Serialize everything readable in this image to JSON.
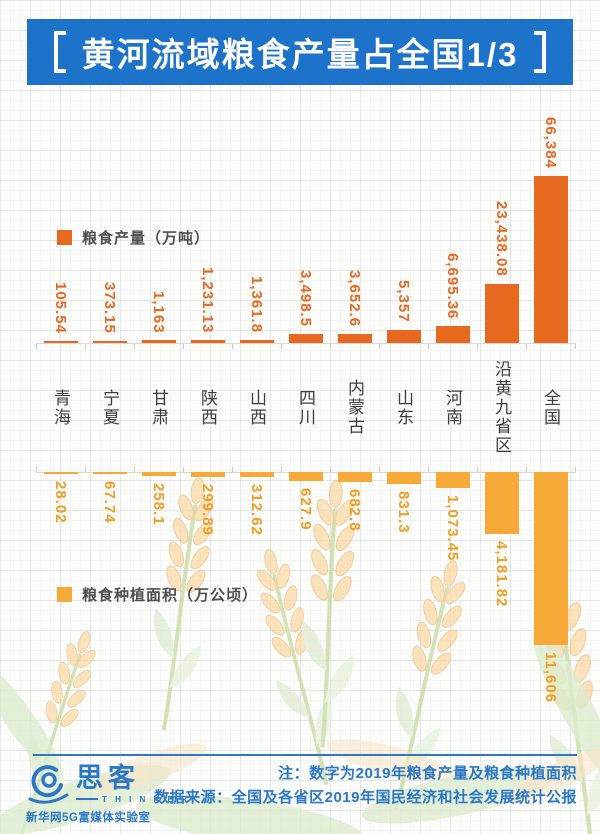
{
  "title": {
    "text": "黄河流域粮食产量占全国1/3"
  },
  "charts": {
    "categories": [
      "青海",
      "宁夏",
      "甘肃",
      "陕西",
      "山西",
      "四川",
      "内蒙古",
      "山东",
      "河南",
      "沿黄九省区",
      "全国"
    ],
    "production": {
      "legend": "粮食产量（万吨）",
      "labels": [
        "105.54",
        "373.15",
        "1,163",
        "1,231.13",
        "1,361.8",
        "3,498.5",
        "3,652.6",
        "5,357",
        "6,695.36",
        "23,438.08",
        "66,384"
      ],
      "values": [
        105.54,
        373.15,
        1163,
        1231.13,
        1361.8,
        3498.5,
        3652.6,
        5357,
        6695.36,
        23438.08,
        66384
      ]
    },
    "area": {
      "legend": "粮食种植面积（万公顷）",
      "labels": [
        "28.02",
        "67.74",
        "258.1",
        "299.89",
        "312.62",
        "627.9",
        "682.8",
        "831.3",
        "1,073.45",
        "4,181.82",
        "11,606"
      ],
      "values": [
        28.02,
        67.74,
        258.1,
        299.89,
        312.62,
        627.9,
        682.8,
        831.3,
        1073.45,
        4181.82,
        11606
      ]
    }
  },
  "chart_data": {
    "type": "bar",
    "title": "黄河流域粮食产量占全国1/3",
    "categories": [
      "青海",
      "宁夏",
      "甘肃",
      "陕西",
      "山西",
      "四川",
      "内蒙古",
      "山东",
      "河南",
      "沿黄九省区",
      "全国"
    ],
    "series": [
      {
        "name": "粮食产量（万吨）",
        "values": [
          105.54,
          373.15,
          1163,
          1231.13,
          1361.8,
          3498.5,
          3652.6,
          5357,
          6695.36,
          23438.08,
          66384
        ]
      },
      {
        "name": "粮食种植面积（万公顷）",
        "values": [
          28.02,
          67.74,
          258.1,
          299.89,
          312.62,
          627.9,
          682.8,
          831.3,
          1073.45,
          4181.82,
          11606
        ]
      }
    ],
    "layout": "column chart; production bars grow upward from shared axis, planting-area bars mirrored downward; every bar has a rotated data label; category labels vertical between the two axes",
    "grid": "graph-paper background",
    "value_labels": true,
    "legend_position": "left, above upper chart and below lower chart"
  },
  "footer": {
    "note": "注：数字为2019年粮食产量及粮食种植面积",
    "source": "数据来源：全国及各省区2019年国民经济和社会发展统计公报"
  },
  "logo": {
    "brand": "思客",
    "latin": "T H I N K E R",
    "subtitle": "新华网5G富媒体实验室"
  },
  "colors": {
    "banner_blue": "#1d73c9",
    "production_orange": "#e7681f",
    "area_amber": "#f7a938",
    "footer_blue": "#2b77c8",
    "category_text": "#3d3d3d"
  }
}
